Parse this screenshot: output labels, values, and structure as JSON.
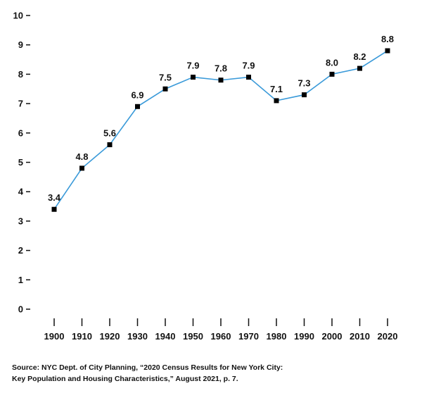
{
  "chart_data": {
    "type": "line",
    "title": "",
    "xlabel": "",
    "ylabel": "",
    "x": [
      1900,
      1910,
      1920,
      1930,
      1940,
      1950,
      1960,
      1970,
      1980,
      1990,
      2000,
      2010,
      2020
    ],
    "series": [
      {
        "values": [
          3.4,
          4.8,
          5.6,
          6.9,
          7.5,
          7.9,
          7.8,
          7.9,
          7.1,
          7.3,
          8.0,
          8.2,
          8.8
        ]
      }
    ],
    "data_labels": [
      "3.4",
      "4.8",
      "5.6",
      "6.9",
      "7.5",
      "7.9",
      "7.8",
      "7.9",
      "7.1",
      "7.3",
      "8.0",
      "8.2",
      "8.8"
    ],
    "x_tick_labels": [
      "1900",
      "1910",
      "1920",
      "1930",
      "1940",
      "1950",
      "1960",
      "1970",
      "1980",
      "1990",
      "2000",
      "2010",
      "2020"
    ],
    "y_ticks": [
      0,
      1,
      2,
      3,
      4,
      5,
      6,
      7,
      8,
      9,
      10
    ],
    "ylim": [
      0,
      10
    ],
    "grid": false,
    "legend": "none",
    "line_color": "#3a9ad9",
    "marker_color": "#000000",
    "marker": "square"
  },
  "source": {
    "line1": "Source: NYC Dept. of City Planning, “2020 Census Results for New York City:",
    "line2": "Key Population and Housing Characteristics,” August 2021, p. 7."
  }
}
